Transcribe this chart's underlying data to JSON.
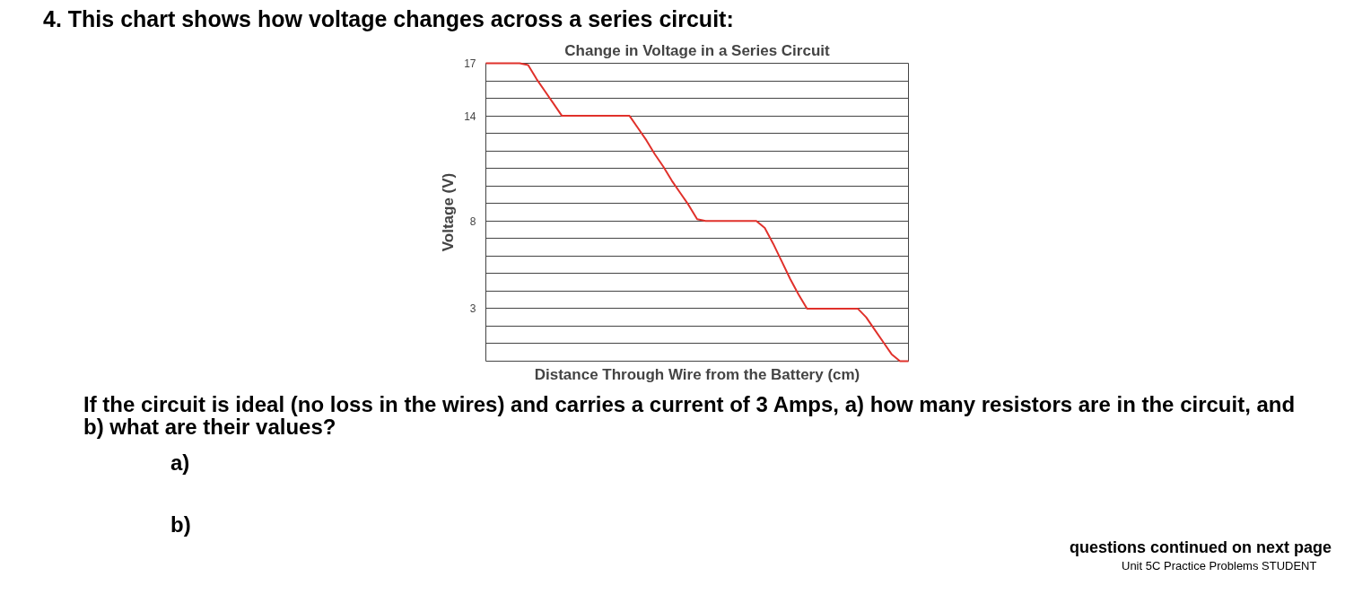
{
  "chart_data": {
    "type": "line",
    "title": "Change in Voltage in a Series Circuit",
    "xlabel": "Distance Through Wire from the Battery (cm)",
    "ylabel": "Voltage (V)",
    "categories": [
      null,
      null,
      null,
      null,
      null,
      null,
      null,
      null,
      null,
      null,
      null,
      null,
      null,
      null,
      null,
      null,
      null,
      null,
      null,
      null,
      null,
      null,
      null,
      null,
      null,
      null,
      null,
      null,
      null,
      null,
      null,
      null,
      null,
      null,
      null,
      null,
      null,
      null,
      null,
      null,
      null,
      null,
      null,
      null,
      null,
      null,
      null,
      null,
      null,
      null,
      null
    ],
    "series": [
      {
        "color": "#e0312b",
        "values": [
          17,
          17,
          17,
          17,
          17,
          16.9,
          16.1,
          15.4,
          14.7,
          14,
          14,
          14,
          14,
          14,
          14,
          14,
          14,
          14,
          13.3,
          12.6,
          11.8,
          11.1,
          10.3,
          9.6,
          8.9,
          8.1,
          8,
          8,
          8,
          8,
          8,
          8,
          8,
          7.6,
          6.7,
          5.7,
          4.7,
          3.8,
          3,
          3,
          3,
          3,
          3,
          3,
          3,
          2.5,
          1.8,
          1.1,
          0.4,
          0,
          0
        ]
      }
    ],
    "ylim": [
      0,
      17
    ],
    "yticks": [
      {
        "value": 0,
        "label": null
      },
      {
        "value": 1,
        "label": null
      },
      {
        "value": 2,
        "label": null
      },
      3,
      {
        "value": 4,
        "label": null
      },
      {
        "value": 5,
        "label": null
      },
      {
        "value": 6,
        "label": null
      },
      {
        "value": 7,
        "label": null
      },
      8,
      {
        "value": 9,
        "label": null
      },
      {
        "value": 10,
        "label": null
      },
      {
        "value": 11,
        "label": null
      },
      {
        "value": 12,
        "label": null
      },
      {
        "value": 13,
        "label": null
      },
      14,
      {
        "value": 15,
        "label": null
      },
      {
        "value": 16,
        "label": null
      },
      17
    ],
    "tick_labels": "y",
    "grid": "y",
    "marker": "none",
    "line_style": "solid",
    "annotations": [
      "4.  This chart shows how voltage changes across a series circuit:",
      "If the circuit is ideal (no loss in the wires) and carries a current of 3 Amps, a) how many resistors are in the circuit, and b) what are their values?",
      "a)",
      "b)",
      "questions continued on next page",
      "Unit 5C  Practice Problems STUDENT"
    ]
  }
}
